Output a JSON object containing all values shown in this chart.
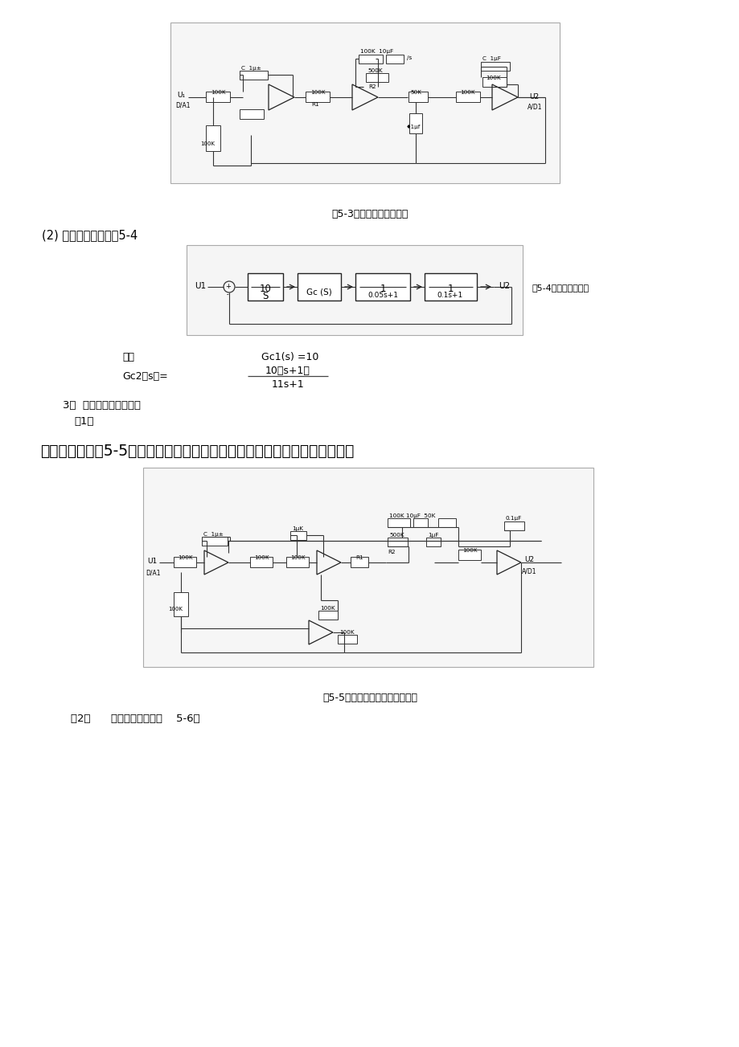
{
  "bg_color": "#ffffff",
  "fig3_caption": "图5-3滞后校正模拟电路图",
  "fig4_caption": "图5-4滞后系统结构图",
  "fig5_caption": "图5-5超前一滞后校正模拟电路图",
  "section2_title": "(2) 系统结构图示如图5-4",
  "section3_title": "3．  串联超前一滞后校正",
  "section3_sub": "（1）",
  "gc1_label": "图中",
  "gc1_eq": "Gc1(s) =10",
  "gc2_label": "Gc2（s）=",
  "gc2_numerator": "10（s+1）",
  "gc2_denominator": "11s+1",
  "big_text": "模拟电路图如图5-5，双刀开关断开对应未校状态，接通对应超前一滞后校正",
  "last_line": "（2）      系统结构图示如图    5-6。"
}
